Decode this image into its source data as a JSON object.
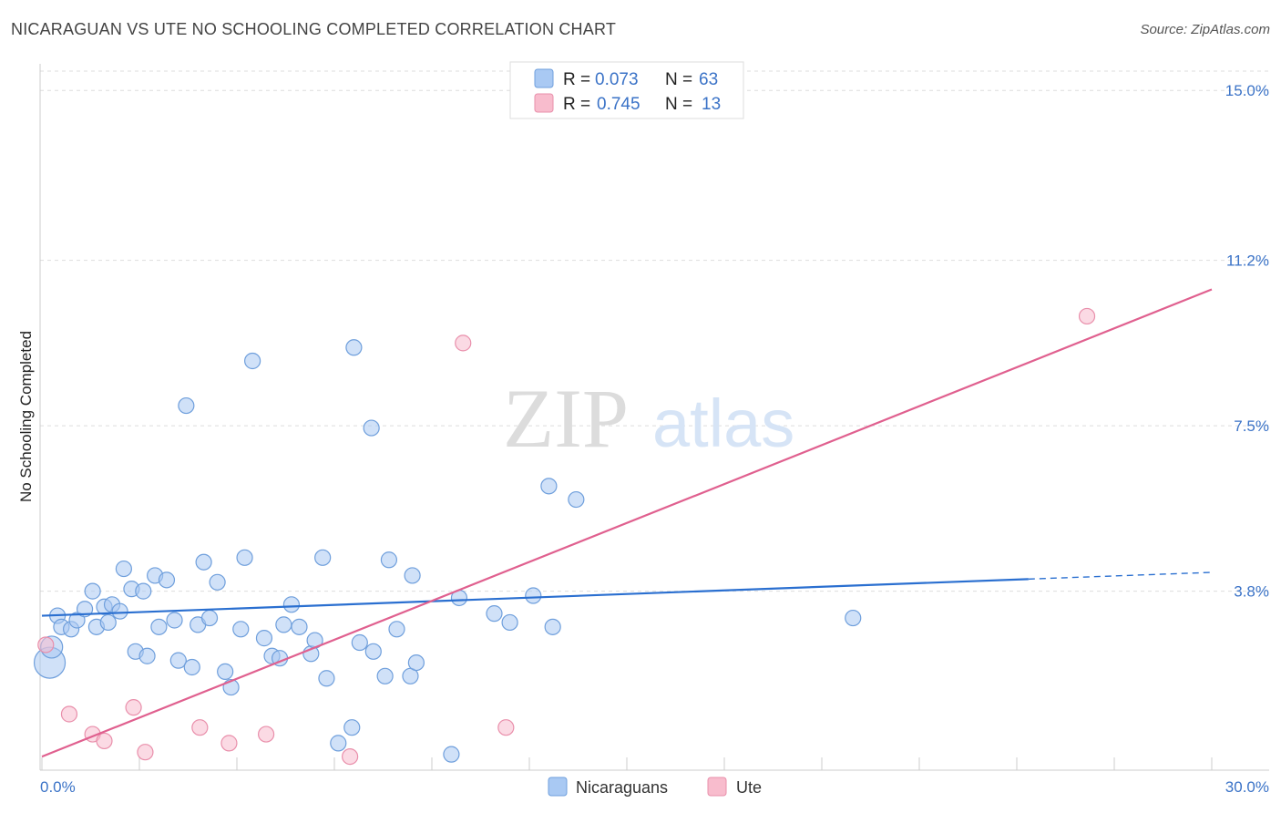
{
  "header": {
    "title": "NICARAGUAN VS UTE NO SCHOOLING COMPLETED CORRELATION CHART",
    "source": "Source: ZipAtlas.com"
  },
  "watermark": {
    "zip": "ZIP",
    "atlas": "atlas"
  },
  "colors": {
    "nicaraguans_fill": "#a9c9f3",
    "nicaraguans_stroke": "#6f9fdc",
    "nicaraguans_line": "#2a6fd0",
    "ute_fill": "#f8bccd",
    "ute_stroke": "#e98fab",
    "ute_line": "#e0608f",
    "tick_text": "#3b73c7",
    "grid": "#dddddd"
  },
  "stats_legend": {
    "rows": [
      {
        "r_label": "R =",
        "r_value": "0.073",
        "n_label": "N =",
        "n_value": "63"
      },
      {
        "r_label": "R =",
        "r_value": "0.745",
        "n_label": "N =",
        "n_value": "13"
      }
    ]
  },
  "chart_data": {
    "type": "scatter",
    "title": "NICARAGUAN VS UTE NO SCHOOLING COMPLETED CORRELATION CHART",
    "xlabel": "",
    "ylabel": "No Schooling Completed",
    "xlim": [
      0,
      30
    ],
    "ylim": [
      0,
      15.8
    ],
    "x_tick_labels": [
      {
        "value": 0,
        "label": "0.0%"
      },
      {
        "value": 30,
        "label": "30.0%"
      }
    ],
    "y_ticks": [
      {
        "value": 3.8,
        "label": "3.8%"
      },
      {
        "value": 7.5,
        "label": "7.5%"
      },
      {
        "value": 11.2,
        "label": "11.2%"
      },
      {
        "value": 15.0,
        "label": "15.0%"
      }
    ],
    "grid": true,
    "legend_position": "bottom",
    "series": [
      {
        "name": "Nicaraguans",
        "trend": {
          "x_start": 0,
          "y_start": 3.25,
          "x_end": 25.3,
          "y_end": 4.07,
          "dashed_to_x": 30,
          "dashed_to_y": 4.22
        },
        "points": [
          {
            "x": 0.2,
            "y": 2.2,
            "s": 3
          },
          {
            "x": 0.25,
            "y": 2.55,
            "s": 2
          },
          {
            "x": 0.4,
            "y": 3.25,
            "s": 1
          },
          {
            "x": 0.5,
            "y": 3.0,
            "s": 1
          },
          {
            "x": 0.75,
            "y": 2.95,
            "s": 1
          },
          {
            "x": 0.9,
            "y": 3.15,
            "s": 1
          },
          {
            "x": 1.1,
            "y": 3.4,
            "s": 1
          },
          {
            "x": 1.3,
            "y": 3.8,
            "s": 1
          },
          {
            "x": 1.4,
            "y": 3.0,
            "s": 1
          },
          {
            "x": 1.6,
            "y": 3.45,
            "s": 1
          },
          {
            "x": 1.7,
            "y": 3.1,
            "s": 1
          },
          {
            "x": 1.8,
            "y": 3.5,
            "s": 1
          },
          {
            "x": 2.0,
            "y": 3.35,
            "s": 1
          },
          {
            "x": 2.1,
            "y": 4.3,
            "s": 1
          },
          {
            "x": 2.3,
            "y": 3.85,
            "s": 1
          },
          {
            "x": 2.4,
            "y": 2.45,
            "s": 1
          },
          {
            "x": 2.6,
            "y": 3.8,
            "s": 1
          },
          {
            "x": 2.7,
            "y": 2.35,
            "s": 1
          },
          {
            "x": 2.9,
            "y": 4.15,
            "s": 1
          },
          {
            "x": 3.0,
            "y": 3.0,
            "s": 1
          },
          {
            "x": 3.2,
            "y": 4.05,
            "s": 1
          },
          {
            "x": 3.4,
            "y": 3.15,
            "s": 1
          },
          {
            "x": 3.5,
            "y": 2.25,
            "s": 1
          },
          {
            "x": 3.7,
            "y": 7.95,
            "s": 1
          },
          {
            "x": 3.85,
            "y": 2.1,
            "s": 1
          },
          {
            "x": 4.0,
            "y": 3.05,
            "s": 1
          },
          {
            "x": 4.15,
            "y": 4.45,
            "s": 1
          },
          {
            "x": 4.3,
            "y": 3.2,
            "s": 1
          },
          {
            "x": 4.5,
            "y": 4.0,
            "s": 1
          },
          {
            "x": 4.7,
            "y": 2.0,
            "s": 1
          },
          {
            "x": 4.85,
            "y": 1.65,
            "s": 1
          },
          {
            "x": 5.1,
            "y": 2.95,
            "s": 1
          },
          {
            "x": 5.2,
            "y": 4.55,
            "s": 1
          },
          {
            "x": 5.4,
            "y": 8.95,
            "s": 1
          },
          {
            "x": 5.7,
            "y": 2.75,
            "s": 1
          },
          {
            "x": 5.9,
            "y": 2.35,
            "s": 1
          },
          {
            "x": 6.1,
            "y": 2.3,
            "s": 1
          },
          {
            "x": 6.2,
            "y": 3.05,
            "s": 1
          },
          {
            "x": 6.4,
            "y": 3.5,
            "s": 1
          },
          {
            "x": 6.6,
            "y": 3.0,
            "s": 1
          },
          {
            "x": 6.9,
            "y": 2.4,
            "s": 1
          },
          {
            "x": 7.0,
            "y": 2.7,
            "s": 1
          },
          {
            "x": 7.2,
            "y": 4.55,
            "s": 1
          },
          {
            "x": 7.3,
            "y": 1.85,
            "s": 1
          },
          {
            "x": 7.6,
            "y": 0.4,
            "s": 1
          },
          {
            "x": 7.95,
            "y": 0.75,
            "s": 1
          },
          {
            "x": 8.0,
            "y": 9.25,
            "s": 1
          },
          {
            "x": 8.15,
            "y": 2.65,
            "s": 1
          },
          {
            "x": 8.45,
            "y": 7.45,
            "s": 1
          },
          {
            "x": 8.5,
            "y": 2.45,
            "s": 1
          },
          {
            "x": 8.8,
            "y": 1.9,
            "s": 1
          },
          {
            "x": 8.9,
            "y": 4.5,
            "s": 1
          },
          {
            "x": 9.1,
            "y": 2.95,
            "s": 1
          },
          {
            "x": 9.5,
            "y": 4.15,
            "s": 1
          },
          {
            "x": 9.45,
            "y": 1.9,
            "s": 1
          },
          {
            "x": 9.6,
            "y": 2.2,
            "s": 1
          },
          {
            "x": 10.5,
            "y": 0.15,
            "s": 1
          },
          {
            "x": 10.7,
            "y": 3.65,
            "s": 1
          },
          {
            "x": 11.6,
            "y": 3.3,
            "s": 1
          },
          {
            "x": 12.0,
            "y": 3.1,
            "s": 1
          },
          {
            "x": 12.6,
            "y": 3.7,
            "s": 1
          },
          {
            "x": 13.0,
            "y": 6.15,
            "s": 1
          },
          {
            "x": 13.1,
            "y": 3.0,
            "s": 1
          },
          {
            "x": 13.7,
            "y": 5.85,
            "s": 1
          },
          {
            "x": 20.8,
            "y": 3.2,
            "s": 1
          }
        ]
      },
      {
        "name": "Ute",
        "trend": {
          "x_start": 0,
          "y_start": 0.1,
          "x_end": 30,
          "y_end": 10.55
        },
        "points": [
          {
            "x": 0.1,
            "y": 2.6,
            "s": 1
          },
          {
            "x": 0.7,
            "y": 1.05,
            "s": 1
          },
          {
            "x": 1.3,
            "y": 0.6,
            "s": 1
          },
          {
            "x": 1.6,
            "y": 0.45,
            "s": 1
          },
          {
            "x": 2.35,
            "y": 1.2,
            "s": 1
          },
          {
            "x": 2.65,
            "y": 0.2,
            "s": 1
          },
          {
            "x": 4.05,
            "y": 0.75,
            "s": 1
          },
          {
            "x": 4.8,
            "y": 0.4,
            "s": 1
          },
          {
            "x": 5.75,
            "y": 0.6,
            "s": 1
          },
          {
            "x": 7.9,
            "y": 0.1,
            "s": 1
          },
          {
            "x": 10.8,
            "y": 9.35,
            "s": 1
          },
          {
            "x": 11.9,
            "y": 0.75,
            "s": 1
          },
          {
            "x": 26.8,
            "y": 9.95,
            "s": 1
          }
        ]
      }
    ]
  }
}
